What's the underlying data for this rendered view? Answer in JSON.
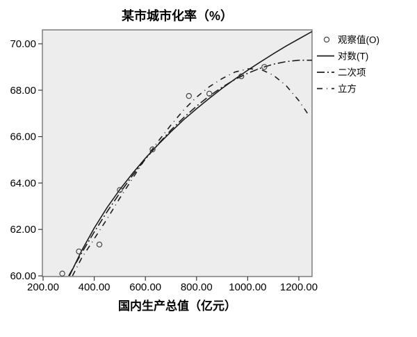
{
  "title": "某市城市化率（%）",
  "x_axis": {
    "label": "国内生产总值（亿元）",
    "tick_labels": [
      "200.00",
      "400.00",
      "600.00",
      "800.00",
      "1000.00",
      "1200.00"
    ],
    "tick_values": [
      200,
      400,
      600,
      800,
      1000,
      1200
    ]
  },
  "y_axis": {
    "label": "",
    "tick_labels": [
      "60.00",
      "62.00",
      "64.00",
      "66.00",
      "68.00",
      "70.00"
    ],
    "tick_values": [
      60,
      62,
      64,
      66,
      68,
      70
    ]
  },
  "legend": {
    "items": [
      {
        "id": "observed",
        "label": "观察值(O)",
        "style": "circle-marker"
      },
      {
        "id": "log",
        "label": "对数(T)",
        "style": "solid"
      },
      {
        "id": "quadratic",
        "label": "二次项",
        "style": "dash-dot"
      },
      {
        "id": "cubic",
        "label": "立方",
        "style": "dash"
      }
    ]
  },
  "colors": {
    "plot_bg": "#ededed",
    "frame": "#7d7d7d",
    "line": "#1c1c1c",
    "marker": "#444444",
    "text": "#000000"
  },
  "chart_data": {
    "type": "scatter",
    "title": "某市城市化率（%）",
    "xlabel": "国内生产总值（亿元）",
    "ylabel": "",
    "xlim": [
      197,
      1252
    ],
    "ylim": [
      60,
      70.6
    ],
    "grid": false,
    "legend_position": "outside-top-right",
    "observed": {
      "name": "观察值(O)",
      "x": [
        275,
        340,
        420,
        500,
        628,
        770,
        850,
        975,
        1065
      ],
      "y": [
        60.1,
        61.05,
        61.35,
        63.7,
        65.45,
        67.75,
        67.85,
        68.6,
        69.0
      ]
    },
    "series": [
      {
        "name": "对数(T)",
        "dash": "solid",
        "x": [
          303,
          350,
          400,
          450,
          500,
          550,
          600,
          650,
          700,
          750,
          800,
          850,
          900,
          950,
          1000,
          1050,
          1100,
          1150,
          1200,
          1252
        ],
        "y": [
          60.0,
          61.07,
          62.06,
          62.94,
          63.72,
          64.42,
          65.07,
          65.66,
          66.21,
          66.73,
          67.2,
          67.65,
          68.08,
          68.48,
          68.86,
          69.22,
          69.57,
          69.9,
          70.21,
          70.53
        ]
      },
      {
        "name": "二次项",
        "dash": "dash-dot",
        "x": [
          300,
          350,
          400,
          450,
          500,
          550,
          600,
          650,
          700,
          750,
          800,
          850,
          900,
          950,
          1000,
          1050,
          1100,
          1150,
          1200,
          1252
        ],
        "y": [
          60.0,
          60.97,
          61.89,
          62.76,
          63.57,
          64.33,
          65.03,
          65.68,
          66.28,
          66.82,
          67.31,
          67.75,
          68.13,
          68.46,
          68.73,
          68.95,
          69.12,
          69.23,
          69.29,
          69.29
        ]
      },
      {
        "name": "立方",
        "dash": "dash",
        "x": [
          315,
          350,
          400,
          450,
          500,
          550,
          600,
          650,
          700,
          750,
          800,
          850,
          900,
          950,
          1000,
          1050,
          1100,
          1150,
          1200,
          1240
        ],
        "y": [
          60.0,
          60.75,
          61.6,
          62.45,
          63.35,
          64.2,
          65.05,
          65.8,
          66.5,
          67.15,
          67.7,
          68.15,
          68.5,
          68.78,
          68.92,
          68.9,
          68.65,
          68.2,
          67.55,
          66.9
        ]
      }
    ]
  }
}
